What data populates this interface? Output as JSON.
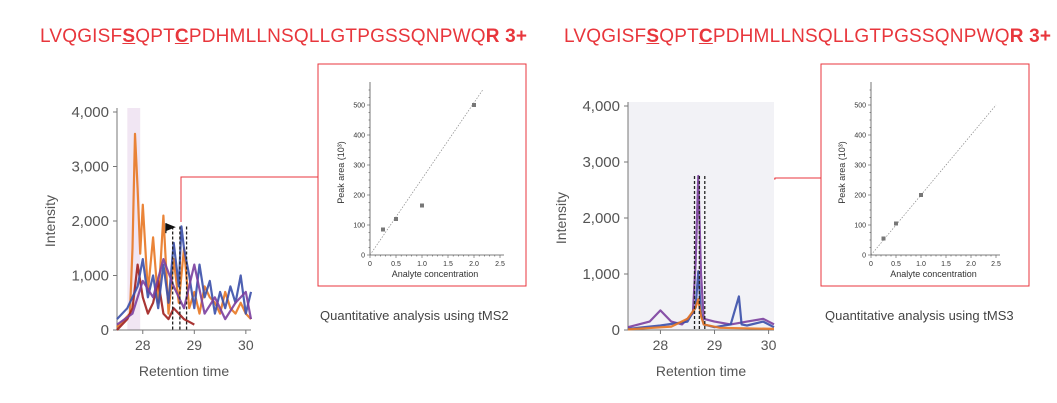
{
  "panels": [
    {
      "peptide": {
        "pre": "LVQGISF",
        "mod1": "S",
        "mid": "QPT",
        "mod2": "C",
        "post": "PDHMLLNSQLLGTPGSSQNPWQ",
        "suffix": "R 3+"
      },
      "caption": "Quantitative analysis using tMS2"
    },
    {
      "peptide": {
        "pre": "LVQGISF",
        "mod1": "S",
        "mid": "QPT",
        "mod2": "C",
        "post": "PDHMLLNSQLLGTPGSSQNPWQ",
        "suffix": "R 3+"
      },
      "caption": "Quantitative analysis using tMS3"
    }
  ],
  "colors": {
    "red": "#e8363c",
    "orange": "#e87722",
    "darkred": "#a0201e",
    "blue": "#3a4faa",
    "purple": "#7b3f9e"
  },
  "chart_data": [
    {
      "type": "line",
      "xlabel": "Retention time",
      "ylabel": "Intensity",
      "xlim": [
        27.5,
        30.1
      ],
      "ylim": [
        0,
        4000
      ],
      "xticks": [
        "28",
        "29",
        "30"
      ],
      "yticks": [
        "0",
        "1,000",
        "2,000",
        "3,000",
        "4,000"
      ],
      "series": [
        {
          "color": "orange",
          "x": [
            27.5,
            27.75,
            27.8,
            27.85,
            27.9,
            27.95,
            28.0,
            28.1,
            28.2,
            28.3,
            28.4,
            28.5,
            28.6,
            28.7,
            28.8,
            28.9,
            29.0,
            29.1,
            29.2,
            29.3,
            29.4,
            29.5,
            29.6,
            29.7,
            29.8,
            29.9,
            30.0,
            30.1
          ],
          "y": [
            50,
            300,
            1500,
            3600,
            2600,
            1400,
            2300,
            700,
            1700,
            500,
            2100,
            300,
            1300,
            500,
            1500,
            400,
            700,
            300,
            800,
            600,
            500,
            300,
            700,
            400,
            300,
            500,
            300,
            200
          ]
        },
        {
          "color": "darkred",
          "x": [
            27.5,
            27.7,
            27.8,
            27.9,
            28.0,
            28.1,
            28.2,
            28.3,
            28.4,
            28.5,
            28.6,
            28.7,
            28.8,
            28.9,
            29.0
          ],
          "y": [
            0,
            200,
            400,
            1200,
            600,
            300,
            500,
            900,
            300,
            200,
            400,
            300,
            200,
            150,
            100
          ]
        },
        {
          "color": "blue",
          "x": [
            27.5,
            27.7,
            27.9,
            28.0,
            28.1,
            28.2,
            28.3,
            28.4,
            28.5,
            28.6,
            28.7,
            28.75,
            28.8,
            28.9,
            29.0,
            29.1,
            29.2,
            29.3,
            29.4,
            29.5,
            29.6,
            29.7,
            29.8,
            29.9,
            30.0,
            30.1
          ],
          "y": [
            200,
            400,
            800,
            1300,
            600,
            1000,
            400,
            1200,
            500,
            1600,
            800,
            1900,
            1500,
            1000,
            400,
            1200,
            600,
            900,
            300,
            700,
            400,
            800,
            500,
            1000,
            300,
            700
          ]
        },
        {
          "color": "purple",
          "x": [
            27.5,
            27.8,
            28.0,
            28.2,
            28.4,
            28.6,
            28.8,
            29.0,
            29.2,
            29.4,
            29.6,
            29.8,
            30.0,
            30.1
          ],
          "y": [
            100,
            300,
            900,
            600,
            1300,
            800,
            400,
            1200,
            300,
            600,
            200,
            500,
            700,
            200
          ]
        }
      ],
      "marker": {
        "x": 28.7,
        "y": 1900
      }
    },
    {
      "type": "scatter",
      "xlabel": "Analyte concentration",
      "ylabel": "Peak area (10³)",
      "xlim": [
        0,
        2.5
      ],
      "ylim": [
        0,
        550
      ],
      "xticks": [
        "0",
        "0.5",
        "1.0",
        "1.5",
        "2.0",
        "2.5"
      ],
      "yticks": [
        "0",
        "100",
        "200",
        "300",
        "400",
        "500"
      ],
      "x": [
        0.25,
        0.5,
        1.0,
        2.0
      ],
      "y": [
        85,
        120,
        165,
        500
      ],
      "fit": [
        [
          0,
          0
        ],
        [
          2.6,
          660
        ]
      ]
    },
    {
      "type": "line",
      "xlabel": "Retention time",
      "ylabel": "Intensity",
      "xlim": [
        27.4,
        30.1
      ],
      "ylim": [
        0,
        4000
      ],
      "xticks": [
        "28",
        "29",
        "30"
      ],
      "yticks": [
        "0",
        "1,000",
        "2,000",
        "3,000",
        "4,000"
      ],
      "series": [
        {
          "color": "purple",
          "x": [
            27.4,
            27.8,
            28.0,
            28.2,
            28.4,
            28.6,
            28.65,
            28.7,
            28.75,
            28.8,
            29.0,
            29.3,
            29.6,
            29.9,
            30.1
          ],
          "y": [
            50,
            150,
            350,
            150,
            100,
            300,
            1200,
            2750,
            1000,
            200,
            150,
            100,
            150,
            200,
            100
          ]
        },
        {
          "color": "blue",
          "x": [
            27.4,
            28.0,
            28.5,
            28.65,
            28.7,
            28.75,
            28.8,
            29.0,
            29.3,
            29.45,
            29.5,
            29.6,
            29.9,
            30.1
          ],
          "y": [
            20,
            80,
            150,
            400,
            1050,
            300,
            100,
            50,
            100,
            600,
            100,
            80,
            150,
            50
          ]
        },
        {
          "color": "orange",
          "x": [
            27.4,
            28.2,
            28.5,
            28.65,
            28.7,
            28.75,
            28.8,
            29.1,
            30.1
          ],
          "y": [
            10,
            60,
            200,
            400,
            550,
            250,
            100,
            40,
            20
          ]
        }
      ]
    },
    {
      "type": "scatter",
      "xlabel": "Analyte concentration",
      "ylabel": "Peak area (10³)",
      "xlim": [
        0,
        2.5
      ],
      "ylim": [
        0,
        550
      ],
      "xticks": [
        "0",
        "0.5",
        "1.0",
        "1.5",
        "2.0",
        "2.5"
      ],
      "yticks": [
        "0",
        "100",
        "200",
        "300",
        "400",
        "500"
      ],
      "x": [
        0.25,
        0.5,
        1.0
      ],
      "y": [
        55,
        105,
        200
      ],
      "fit": [
        [
          0,
          0
        ],
        [
          2.5,
          500
        ]
      ]
    }
  ]
}
